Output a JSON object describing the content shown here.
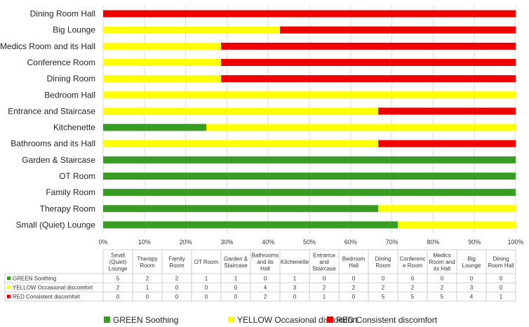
{
  "chart_data": {
    "type": "bar",
    "orientation": "horizontal",
    "stacked": "percent",
    "categories": [
      "Small (Quiet) Lounge",
      "Therapy Room",
      "Family Room",
      "OT Room",
      "Garden & Staircase",
      "Bathrooms and its Hall",
      "Kitchenette",
      "Entrance and Staircase",
      "Bedroom Hall",
      "Dining Room",
      "Conference Room",
      "Medics Room and its Hall",
      "Big Lounge",
      "Dining Room Hall"
    ],
    "series": [
      {
        "name": "GREEN Soothing",
        "color": "#3a9d23",
        "values": [
          5,
          2,
          2,
          1,
          1,
          0,
          1,
          0,
          0,
          0,
          0,
          0,
          0,
          0
        ]
      },
      {
        "name": "YELLOW Occasional discomfort",
        "color": "#ffff00",
        "values": [
          2,
          1,
          0,
          0,
          0,
          4,
          3,
          2,
          2,
          2,
          2,
          2,
          3,
          0
        ]
      },
      {
        "name": "RED Consistent discomfort",
        "color": "#ee0000",
        "values": [
          0,
          0,
          0,
          0,
          0,
          2,
          0,
          1,
          0,
          5,
          5,
          5,
          4,
          1
        ]
      }
    ],
    "xlim": [
      0,
      100
    ],
    "x_ticks": [
      "0%",
      "10%",
      "20%",
      "30%",
      "40%",
      "50%",
      "60%",
      "70%",
      "80%",
      "90%",
      "100%"
    ],
    "table_headers": [
      "Small (Quiet) Lounge",
      "Therapy Room",
      "Family Room",
      "OT Room",
      "Garden & Staircase",
      "Bathrooms and its Hall",
      "Kitchenette",
      "Entrance and Staircase",
      "Bedroom Hall",
      "Dining Room",
      "Conferenc e Room",
      "Medics Room and its Hall",
      "Big Lounge",
      "Dining Room Hall"
    ],
    "grid": true,
    "legend_position": "bottom"
  }
}
